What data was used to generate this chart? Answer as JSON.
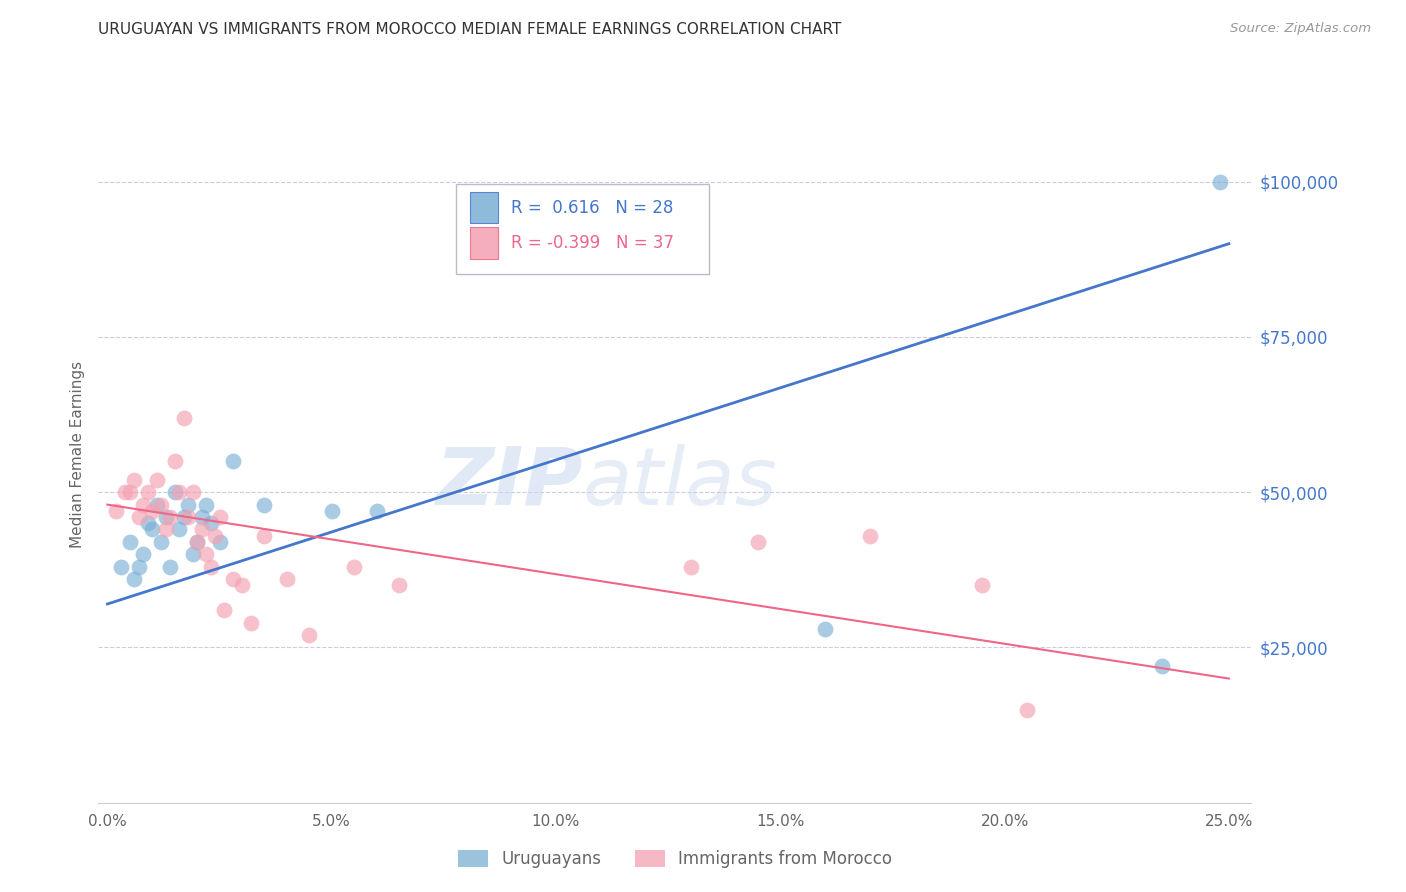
{
  "title": "URUGUAYAN VS IMMIGRANTS FROM MOROCCO MEDIAN FEMALE EARNINGS CORRELATION CHART",
  "source": "Source: ZipAtlas.com",
  "ylabel": "Median Female Earnings",
  "xlabel_ticks": [
    "0.0%",
    "5.0%",
    "10.0%",
    "15.0%",
    "20.0%",
    "25.0%"
  ],
  "xlabel_vals": [
    0.0,
    0.05,
    0.1,
    0.15,
    0.2,
    0.25
  ],
  "ytick_labels": [
    "$25,000",
    "$50,000",
    "$75,000",
    "$100,000"
  ],
  "ytick_vals": [
    25000,
    50000,
    75000,
    100000
  ],
  "xlim": [
    -0.002,
    0.255
  ],
  "ylim": [
    0,
    112000
  ],
  "blue_color": "#7BAfd4",
  "pink_color": "#F4A0B0",
  "blue_line_color": "#4477CC",
  "pink_line_color": "#EE6688",
  "watermark_zip": "ZIP",
  "watermark_atlas": "atlas",
  "legend_R_blue": "0.616",
  "legend_N_blue": "28",
  "legend_R_pink": "-0.399",
  "legend_N_pink": "37",
  "blue_scatter_x": [
    0.003,
    0.005,
    0.006,
    0.007,
    0.008,
    0.009,
    0.01,
    0.011,
    0.012,
    0.013,
    0.014,
    0.015,
    0.016,
    0.017,
    0.018,
    0.019,
    0.02,
    0.021,
    0.022,
    0.023,
    0.025,
    0.028,
    0.035,
    0.05,
    0.06,
    0.16,
    0.235,
    0.248
  ],
  "blue_scatter_y": [
    38000,
    42000,
    36000,
    38000,
    40000,
    45000,
    44000,
    48000,
    42000,
    46000,
    38000,
    50000,
    44000,
    46000,
    48000,
    40000,
    42000,
    46000,
    48000,
    45000,
    42000,
    55000,
    48000,
    47000,
    47000,
    28000,
    22000,
    100000
  ],
  "pink_scatter_x": [
    0.002,
    0.004,
    0.005,
    0.006,
    0.007,
    0.008,
    0.009,
    0.01,
    0.011,
    0.012,
    0.013,
    0.014,
    0.015,
    0.016,
    0.017,
    0.018,
    0.019,
    0.02,
    0.021,
    0.022,
    0.023,
    0.024,
    0.025,
    0.026,
    0.028,
    0.03,
    0.032,
    0.035,
    0.04,
    0.045,
    0.055,
    0.065,
    0.13,
    0.145,
    0.17,
    0.195,
    0.205
  ],
  "pink_scatter_y": [
    47000,
    50000,
    50000,
    52000,
    46000,
    48000,
    50000,
    47000,
    52000,
    48000,
    44000,
    46000,
    55000,
    50000,
    62000,
    46000,
    50000,
    42000,
    44000,
    40000,
    38000,
    43000,
    46000,
    31000,
    36000,
    35000,
    29000,
    43000,
    36000,
    27000,
    38000,
    35000,
    38000,
    42000,
    43000,
    35000,
    15000
  ],
  "blue_line_x": [
    0.0,
    0.25
  ],
  "blue_line_y": [
    32000,
    90000
  ],
  "pink_line_x": [
    0.0,
    0.25
  ],
  "pink_line_y": [
    48000,
    20000
  ],
  "background_color": "#FFFFFF",
  "grid_color": "#CCCCDD",
  "title_color": "#333333",
  "axis_label_color": "#666666",
  "right_tick_color": "#4477CC"
}
